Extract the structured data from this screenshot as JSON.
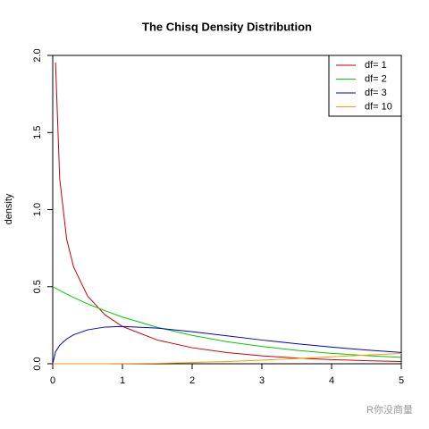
{
  "chart_data": {
    "type": "line",
    "title": "The Chisq Density Distribution",
    "y_label": "density",
    "x": [
      0,
      0.04,
      0.1,
      0.2,
      0.3,
      0.5,
      0.75,
      1,
      1.5,
      2,
      2.5,
      3,
      3.5,
      4,
      4.5,
      5
    ],
    "series": [
      {
        "name": "df= 1",
        "color": "#cc0000",
        "values": [
          null,
          1.955,
          1.2,
          0.807,
          0.627,
          0.439,
          0.317,
          0.242,
          0.154,
          0.104,
          0.0723,
          0.0514,
          0.0371,
          0.027,
          0.0198,
          0.0146
        ]
      },
      {
        "name": "df= 2",
        "color": "#00cc00",
        "values": [
          0.5,
          0.49,
          0.476,
          0.452,
          0.43,
          0.389,
          0.344,
          0.303,
          0.236,
          0.184,
          0.143,
          0.112,
          0.0869,
          0.0677,
          0.0527,
          0.041
        ]
      },
      {
        "name": "df= 3",
        "color": "#0000cc",
        "values": [
          0,
          0.078,
          0.12,
          0.161,
          0.188,
          0.22,
          0.238,
          0.242,
          0.231,
          0.208,
          0.181,
          0.154,
          0.13,
          0.108,
          0.089,
          0.073
        ]
      },
      {
        "name": "df= 10",
        "color": "#ff9900",
        "values": [
          0,
          0,
          0,
          0,
          0,
          6.34e-05,
          0.000283,
          0.00079,
          0.00311,
          0.00766,
          0.01457,
          0.0235,
          0.034,
          0.0451,
          0.0563,
          0.0668
        ]
      }
    ],
    "xlim": [
      0,
      5
    ],
    "xticks": [
      0,
      1,
      2,
      3,
      4,
      5
    ],
    "ylim": [
      0,
      2
    ],
    "yticks": [
      {
        "value": 0,
        "label": "0.0"
      },
      0.5,
      {
        "value": 1,
        "label": "1.0"
      },
      1.5,
      {
        "value": 2,
        "label": "2.0"
      }
    ],
    "legend": "top-right",
    "grid": false
  },
  "watermark": "R你没商量"
}
